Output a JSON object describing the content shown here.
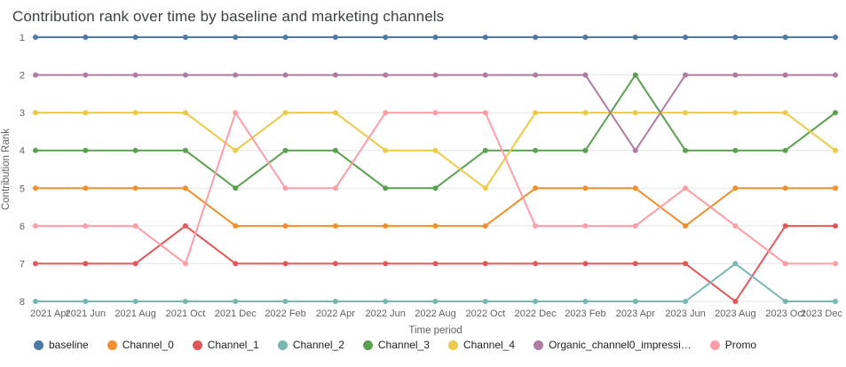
{
  "chart_data": {
    "type": "line",
    "subtype": "bump-rank-chart",
    "title": "Contribution rank over time by baseline and marketing channels",
    "xlabel": "Time period",
    "ylabel": "Contribution Rank",
    "y_ticks": [
      1,
      2,
      3,
      4,
      5,
      6,
      7,
      8
    ],
    "ylim": [
      1,
      8
    ],
    "y_axis_inverted": true,
    "grid": "horizontal",
    "legend_position": "bottom",
    "marker": "circle",
    "categories": [
      "2021 Apr",
      "2021 Jun",
      "2021 Aug",
      "2021 Oct",
      "2021 Dec",
      "2022 Feb",
      "2022 Apr",
      "2022 Jun",
      "2022 Aug",
      "2022 Oct",
      "2022 Dec",
      "2023 Feb",
      "2023 Apr",
      "2023 Jun",
      "2023 Aug",
      "2023 Oct",
      "2023 Dec"
    ],
    "series": [
      {
        "label": "baseline",
        "color": "#4e79a7",
        "values": [
          1,
          1,
          1,
          1,
          1,
          1,
          1,
          1,
          1,
          1,
          1,
          1,
          1,
          1,
          1,
          1,
          1
        ]
      },
      {
        "label": "Channel_0",
        "color": "#f28e2b",
        "values": [
          5,
          5,
          5,
          5,
          6,
          6,
          6,
          6,
          6,
          6,
          5,
          5,
          5,
          6,
          5,
          5,
          5
        ]
      },
      {
        "label": "Channel_1",
        "color": "#e15759",
        "values": [
          7,
          7,
          7,
          6,
          7,
          7,
          7,
          7,
          7,
          7,
          7,
          7,
          7,
          7,
          8,
          6,
          6
        ]
      },
      {
        "label": "Channel_2",
        "color": "#76b7b2",
        "values": [
          8,
          8,
          8,
          8,
          8,
          8,
          8,
          8,
          8,
          8,
          8,
          8,
          8,
          8,
          7,
          8,
          8
        ]
      },
      {
        "label": "Channel_3",
        "color": "#59a14f",
        "values": [
          4,
          4,
          4,
          4,
          5,
          4,
          4,
          5,
          5,
          4,
          4,
          4,
          2,
          4,
          4,
          4,
          3
        ]
      },
      {
        "label": "Channel_4",
        "color": "#edc948",
        "values": [
          3,
          3,
          3,
          3,
          4,
          3,
          3,
          4,
          4,
          5,
          3,
          3,
          3,
          3,
          3,
          3,
          4
        ]
      },
      {
        "label": "Organic_channel0_impressi…",
        "color": "#b07aa1",
        "values": [
          2,
          2,
          2,
          2,
          2,
          2,
          2,
          2,
          2,
          2,
          2,
          2,
          4,
          2,
          2,
          2,
          2
        ]
      },
      {
        "label": "Promo",
        "color": "#ff9da7",
        "values": [
          6,
          6,
          6,
          7,
          3,
          5,
          5,
          3,
          3,
          3,
          6,
          6,
          6,
          5,
          6,
          7,
          7
        ]
      }
    ]
  }
}
